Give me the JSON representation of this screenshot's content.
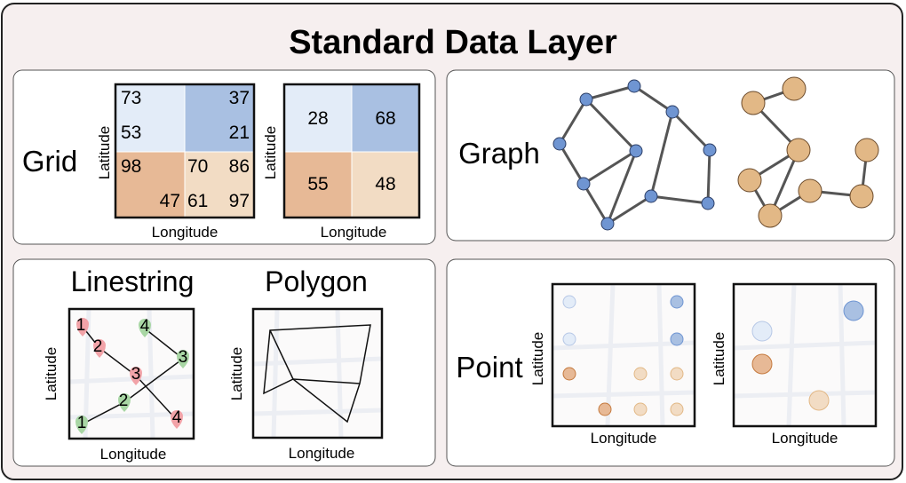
{
  "title": "Standard Data Layer",
  "grid": {
    "label": "Grid",
    "fine": {
      "xlabel": "Longitude",
      "ylabel": "Latitude",
      "tl": [
        "73",
        "53"
      ],
      "tr": [
        "37",
        "21"
      ],
      "bl": [
        "98",
        "47"
      ],
      "br": [
        "70",
        "86",
        "61",
        "97"
      ]
    },
    "coarse": {
      "xlabel": "Longitude",
      "ylabel": "Latitude",
      "cells": [
        "28",
        "68",
        "55",
        "48"
      ]
    }
  },
  "graph": {
    "label": "Graph"
  },
  "linestring": {
    "label": "Linestring",
    "xlabel": "Longitude",
    "ylabel": "Latitude",
    "red_markers": [
      "1",
      "2",
      "3",
      "4"
    ],
    "green_markers": [
      "1",
      "2",
      "3",
      "4"
    ]
  },
  "polygon": {
    "label": "Polygon",
    "xlabel": "Longitude",
    "ylabel": "Latitude"
  },
  "point": {
    "label": "Point",
    "left": {
      "xlabel": "Longitude",
      "ylabel": "Latitude"
    },
    "right": {
      "xlabel": "Longitude",
      "ylabel": "Latitude"
    }
  },
  "colors": {
    "blue_light": "#e3ecf8",
    "blue_dark": "#a9c0e2",
    "orange_dark": "#e7b996",
    "orange_light": "#f2dcc4",
    "node_blue": "#6f95d2",
    "node_orange": "#e2b886",
    "marker_red": "#f2a3a8",
    "marker_green": "#a8d6a4"
  }
}
